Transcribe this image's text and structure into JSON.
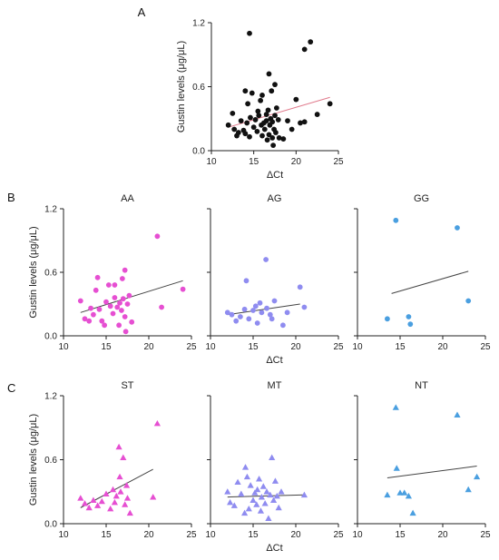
{
  "panels": [
    {
      "letter": "A",
      "label": "A"
    },
    {
      "letter": "B",
      "label": "B"
    },
    {
      "letter": "C",
      "label": "C"
    }
  ],
  "colors": {
    "black": "#111111",
    "pink": "#e64fd2",
    "purple": "#8f8cf0",
    "blue": "#4a9fe0",
    "trend_red": "#e07a8c",
    "trend_gray": "#444444"
  },
  "chart_data": [
    {
      "id": "A",
      "type": "scatter",
      "title": "",
      "xlabel": "ΔCt",
      "ylabel": "Gustin levels (μg/μL)",
      "xlim": [
        10,
        25
      ],
      "ylim": [
        0,
        1.2
      ],
      "xticks": [
        "10",
        "15",
        "20",
        "25"
      ],
      "yticks": [
        "0.0",
        "0.6",
        "1.2"
      ],
      "marker": "circle",
      "color": "#111111",
      "trend_color": "#e07a8c",
      "trend": [
        [
          12,
          0.22
        ],
        [
          24,
          0.5
        ]
      ],
      "points": [
        [
          12,
          0.24
        ],
        [
          12.5,
          0.35
        ],
        [
          12.7,
          0.2
        ],
        [
          13,
          0.14
        ],
        [
          13.2,
          0.17
        ],
        [
          13.5,
          0.28
        ],
        [
          13.8,
          0.19
        ],
        [
          14,
          0.16
        ],
        [
          14,
          0.56
        ],
        [
          14.2,
          0.26
        ],
        [
          14.3,
          0.44
        ],
        [
          14.5,
          0.13
        ],
        [
          14.6,
          0.31
        ],
        [
          14.8,
          0.54
        ],
        [
          14.5,
          1.1
        ],
        [
          15,
          0.22
        ],
        [
          15.2,
          0.29
        ],
        [
          15.4,
          0.18
        ],
        [
          15.5,
          0.37
        ],
        [
          15.6,
          0.33
        ],
        [
          15.8,
          0.47
        ],
        [
          15.9,
          0.24
        ],
        [
          16,
          0.14
        ],
        [
          16,
          0.52
        ],
        [
          16.2,
          0.26
        ],
        [
          16.3,
          0.2
        ],
        [
          16.5,
          0.28
        ],
        [
          16.5,
          0.34
        ],
        [
          16.6,
          0.1
        ],
        [
          16.7,
          0.38
        ],
        [
          16.8,
          0.15
        ],
        [
          16.8,
          0.72
        ],
        [
          16.9,
          0.24
        ],
        [
          17,
          0.3
        ],
        [
          17.1,
          0.56
        ],
        [
          17.2,
          0.12
        ],
        [
          17.2,
          0.27
        ],
        [
          17.3,
          0.05
        ],
        [
          17.4,
          0.2
        ],
        [
          17.5,
          0.62
        ],
        [
          17.5,
          0.33
        ],
        [
          17.6,
          0.17
        ],
        [
          17.7,
          0.4
        ],
        [
          17.9,
          0.29
        ],
        [
          18,
          0.12
        ],
        [
          18.5,
          0.11
        ],
        [
          19,
          0.28
        ],
        [
          19.5,
          0.2
        ],
        [
          20,
          0.48
        ],
        [
          20.5,
          0.26
        ],
        [
          21,
          0.27
        ],
        [
          21,
          0.95
        ],
        [
          21.7,
          1.02
        ],
        [
          22.5,
          0.34
        ],
        [
          24,
          0.44
        ]
      ]
    },
    {
      "id": "AA",
      "type": "scatter",
      "title": "AA",
      "xlabel": "",
      "ylabel": "Gustin levels (μg/μL)",
      "xlim": [
        10,
        25
      ],
      "ylim": [
        0,
        1.2
      ],
      "xticks": [
        "10",
        "15",
        "20",
        "25"
      ],
      "yticks": [
        "0.0",
        "0.6",
        "1.2"
      ],
      "marker": "circle",
      "color": "#e64fd2",
      "trend_color": "#444444",
      "trend": [
        [
          12,
          0.22
        ],
        [
          24,
          0.52
        ]
      ],
      "points": [
        [
          12,
          0.33
        ],
        [
          12.5,
          0.16
        ],
        [
          13,
          0.14
        ],
        [
          13.2,
          0.26
        ],
        [
          13.5,
          0.2
        ],
        [
          13.8,
          0.43
        ],
        [
          14,
          0.55
        ],
        [
          14.2,
          0.25
        ],
        [
          14.5,
          0.14
        ],
        [
          14.8,
          0.1
        ],
        [
          15,
          0.32
        ],
        [
          15.3,
          0.48
        ],
        [
          15.5,
          0.28
        ],
        [
          15.8,
          0.21
        ],
        [
          16,
          0.36
        ],
        [
          16,
          0.48
        ],
        [
          16.3,
          0.27
        ],
        [
          16.5,
          0.1
        ],
        [
          16.6,
          0.31
        ],
        [
          16.8,
          0.24
        ],
        [
          16.9,
          0.54
        ],
        [
          17,
          0.35
        ],
        [
          17.2,
          0.18
        ],
        [
          17.2,
          0.62
        ],
        [
          17.3,
          0.04
        ],
        [
          17.5,
          0.3
        ],
        [
          17.7,
          0.38
        ],
        [
          18,
          0.13
        ],
        [
          21,
          0.94
        ],
        [
          21.5,
          0.27
        ],
        [
          24,
          0.44
        ]
      ]
    },
    {
      "id": "AG",
      "type": "scatter",
      "title": "AG",
      "xlabel": "ΔCt",
      "ylabel": "",
      "xlim": [
        10,
        25
      ],
      "ylim": [
        0,
        1.2
      ],
      "xticks": [
        "10",
        "15",
        "20",
        "25"
      ],
      "yticks": [],
      "marker": "circle",
      "color": "#8f8cf0",
      "trend_color": "#444444",
      "trend": [
        [
          12,
          0.2
        ],
        [
          20.5,
          0.3
        ]
      ],
      "points": [
        [
          12,
          0.22
        ],
        [
          12.5,
          0.2
        ],
        [
          13,
          0.14
        ],
        [
          13.5,
          0.18
        ],
        [
          14,
          0.25
        ],
        [
          14.2,
          0.52
        ],
        [
          14.5,
          0.16
        ],
        [
          15,
          0.24
        ],
        [
          15.3,
          0.28
        ],
        [
          15.5,
          0.12
        ],
        [
          15.8,
          0.31
        ],
        [
          16,
          0.22
        ],
        [
          16.5,
          0.72
        ],
        [
          16.6,
          0.26
        ],
        [
          17,
          0.2
        ],
        [
          17.2,
          0.16
        ],
        [
          17.5,
          0.33
        ],
        [
          18.5,
          0.1
        ],
        [
          19,
          0.22
        ],
        [
          20.5,
          0.46
        ],
        [
          21,
          0.27
        ]
      ]
    },
    {
      "id": "GG",
      "type": "scatter",
      "title": "GG",
      "xlabel": "",
      "ylabel": "",
      "xlim": [
        10,
        25
      ],
      "ylim": [
        0,
        1.2
      ],
      "xticks": [
        "10",
        "15",
        "20",
        "25"
      ],
      "yticks": [],
      "marker": "circle",
      "color": "#4a9fe0",
      "trend_color": "#444444",
      "trend": [
        [
          14,
          0.4
        ],
        [
          23,
          0.61
        ]
      ],
      "points": [
        [
          13.5,
          0.16
        ],
        [
          14.5,
          1.09
        ],
        [
          16,
          0.18
        ],
        [
          16.2,
          0.11
        ],
        [
          21.7,
          1.02
        ],
        [
          23,
          0.33
        ]
      ]
    },
    {
      "id": "ST",
      "type": "scatter",
      "title": "ST",
      "xlabel": "",
      "ylabel": "Gustin levels (μg/μL)",
      "xlim": [
        10,
        25
      ],
      "ylim": [
        0,
        1.2
      ],
      "xticks": [
        "10",
        "15",
        "20",
        "25"
      ],
      "yticks": [
        "0.0",
        "0.6",
        "1.2"
      ],
      "marker": "triangle",
      "color": "#e64fd2",
      "trend_color": "#444444",
      "trend": [
        [
          12,
          0.15
        ],
        [
          20.5,
          0.51
        ]
      ],
      "points": [
        [
          12,
          0.24
        ],
        [
          12.5,
          0.19
        ],
        [
          13,
          0.15
        ],
        [
          13.5,
          0.22
        ],
        [
          14,
          0.17
        ],
        [
          14.5,
          0.21
        ],
        [
          15,
          0.28
        ],
        [
          15.5,
          0.14
        ],
        [
          15.8,
          0.32
        ],
        [
          16,
          0.2
        ],
        [
          16.2,
          0.26
        ],
        [
          16.5,
          0.72
        ],
        [
          16.6,
          0.44
        ],
        [
          16.7,
          0.3
        ],
        [
          17,
          0.62
        ],
        [
          17.2,
          0.18
        ],
        [
          17.4,
          0.36
        ],
        [
          17.5,
          0.24
        ],
        [
          17.8,
          0.1
        ],
        [
          20.5,
          0.25
        ],
        [
          21,
          0.94
        ]
      ]
    },
    {
      "id": "MT",
      "type": "scatter",
      "title": "MT",
      "xlabel": "ΔCt",
      "ylabel": "",
      "xlim": [
        10,
        25
      ],
      "ylim": [
        0,
        1.2
      ],
      "xticks": [
        "10",
        "15",
        "20",
        "25"
      ],
      "yticks": [],
      "marker": "triangle",
      "color": "#8f8cf0",
      "trend_color": "#444444",
      "trend": [
        [
          12,
          0.25
        ],
        [
          21,
          0.27
        ]
      ],
      "points": [
        [
          12,
          0.3
        ],
        [
          12.3,
          0.2
        ],
        [
          12.8,
          0.17
        ],
        [
          13.2,
          0.39
        ],
        [
          13.6,
          0.28
        ],
        [
          14,
          0.1
        ],
        [
          14.1,
          0.53
        ],
        [
          14.3,
          0.44
        ],
        [
          14.5,
          0.14
        ],
        [
          14.7,
          0.36
        ],
        [
          15,
          0.22
        ],
        [
          15.2,
          0.29
        ],
        [
          15.4,
          0.18
        ],
        [
          15.5,
          0.32
        ],
        [
          15.7,
          0.42
        ],
        [
          15.9,
          0.12
        ],
        [
          16,
          0.25
        ],
        [
          16.2,
          0.35
        ],
        [
          16.4,
          0.19
        ],
        [
          16.6,
          0.3
        ],
        [
          16.8,
          0.05
        ],
        [
          17,
          0.27
        ],
        [
          17.2,
          0.62
        ],
        [
          17.4,
          0.22
        ],
        [
          17.6,
          0.4
        ],
        [
          17.8,
          0.26
        ],
        [
          18,
          0.15
        ],
        [
          18.3,
          0.3
        ],
        [
          21,
          0.27
        ]
      ]
    },
    {
      "id": "NT",
      "type": "scatter",
      "title": "NT",
      "xlabel": "",
      "ylabel": "",
      "xlim": [
        10,
        25
      ],
      "ylim": [
        0,
        1.2
      ],
      "xticks": [
        "10",
        "15",
        "20",
        "25"
      ],
      "yticks": [],
      "marker": "triangle",
      "color": "#4a9fe0",
      "trend_color": "#444444",
      "trend": [
        [
          13.5,
          0.43
        ],
        [
          24,
          0.54
        ]
      ],
      "points": [
        [
          13.5,
          0.27
        ],
        [
          14.5,
          1.09
        ],
        [
          14.6,
          0.52
        ],
        [
          15,
          0.29
        ],
        [
          15.5,
          0.29
        ],
        [
          16,
          0.26
        ],
        [
          16.5,
          0.1
        ],
        [
          21.7,
          1.02
        ],
        [
          23,
          0.32
        ],
        [
          24,
          0.44
        ]
      ]
    }
  ]
}
